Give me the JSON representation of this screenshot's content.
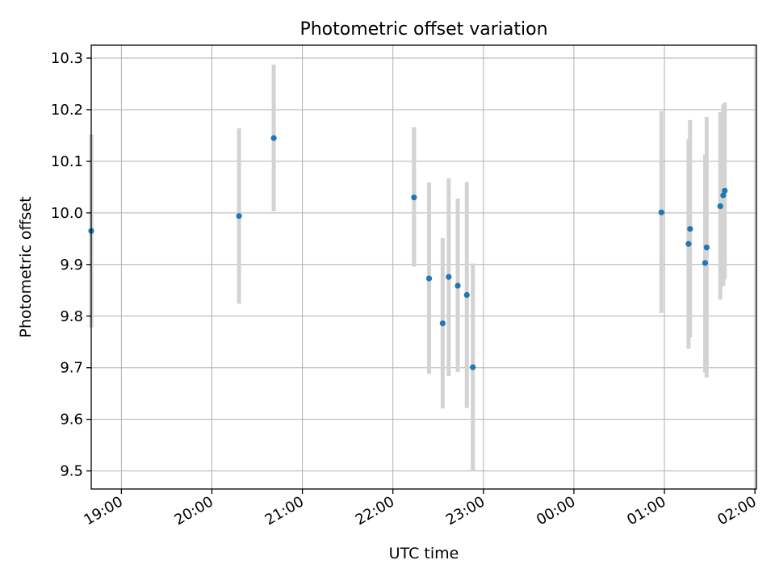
{
  "chart_data": {
    "type": "scatter",
    "title": "Photometric offset variation",
    "xlabel": "UTC time",
    "ylabel": "Photometric offset",
    "xlim": [
      "18:40",
      "02:01"
    ],
    "ylim": [
      9.465,
      10.325
    ],
    "x_ticks": [
      "19:00",
      "20:00",
      "21:00",
      "22:00",
      "23:00",
      "00:00",
      "01:00",
      "02:00"
    ],
    "y_ticks": [
      "9.5",
      "9.6",
      "9.7",
      "9.8",
      "9.9",
      "10.0",
      "10.1",
      "10.2",
      "10.3"
    ],
    "grid": true,
    "point_color": "#1f77b4",
    "errorbar_color": "#d3d3d3",
    "points": [
      {
        "x": "18:40",
        "y": 9.965,
        "yerr_low": 9.778,
        "yerr_high": 10.152
      },
      {
        "x": "20:18",
        "y": 9.994,
        "yerr_low": 9.824,
        "yerr_high": 10.164
      },
      {
        "x": "20:41",
        "y": 10.145,
        "yerr_low": 10.003,
        "yerr_high": 10.287
      },
      {
        "x": "22:14",
        "y": 10.03,
        "yerr_low": 9.896,
        "yerr_high": 10.166
      },
      {
        "x": "22:24",
        "y": 9.873,
        "yerr_low": 9.688,
        "yerr_high": 10.059
      },
      {
        "x": "22:33",
        "y": 9.786,
        "yerr_low": 9.621,
        "yerr_high": 9.951
      },
      {
        "x": "22:37",
        "y": 9.876,
        "yerr_low": 9.684,
        "yerr_high": 10.067
      },
      {
        "x": "22:43",
        "y": 9.859,
        "yerr_low": 9.692,
        "yerr_high": 10.028
      },
      {
        "x": "22:49",
        "y": 9.841,
        "yerr_low": 9.622,
        "yerr_high": 10.06
      },
      {
        "x": "22:53",
        "y": 9.701,
        "yerr_low": 9.5,
        "yerr_high": 9.902
      },
      {
        "x": "00:58",
        "y": 10.001,
        "yerr_low": 9.806,
        "yerr_high": 10.197
      },
      {
        "x": "01:16",
        "y": 9.94,
        "yerr_low": 9.737,
        "yerr_high": 10.143
      },
      {
        "x": "01:17",
        "y": 9.969,
        "yerr_low": 9.759,
        "yerr_high": 10.18
      },
      {
        "x": "01:27",
        "y": 9.903,
        "yerr_low": 9.691,
        "yerr_high": 10.113
      },
      {
        "x": "01:28",
        "y": 9.933,
        "yerr_low": 9.681,
        "yerr_high": 10.186
      },
      {
        "x": "01:37",
        "y": 10.013,
        "yerr_low": 9.832,
        "yerr_high": 10.195
      },
      {
        "x": "01:39",
        "y": 10.034,
        "yerr_low": 9.858,
        "yerr_high": 10.21
      },
      {
        "x": "01:40",
        "y": 10.043,
        "yerr_low": 9.871,
        "yerr_high": 10.214
      }
    ]
  }
}
